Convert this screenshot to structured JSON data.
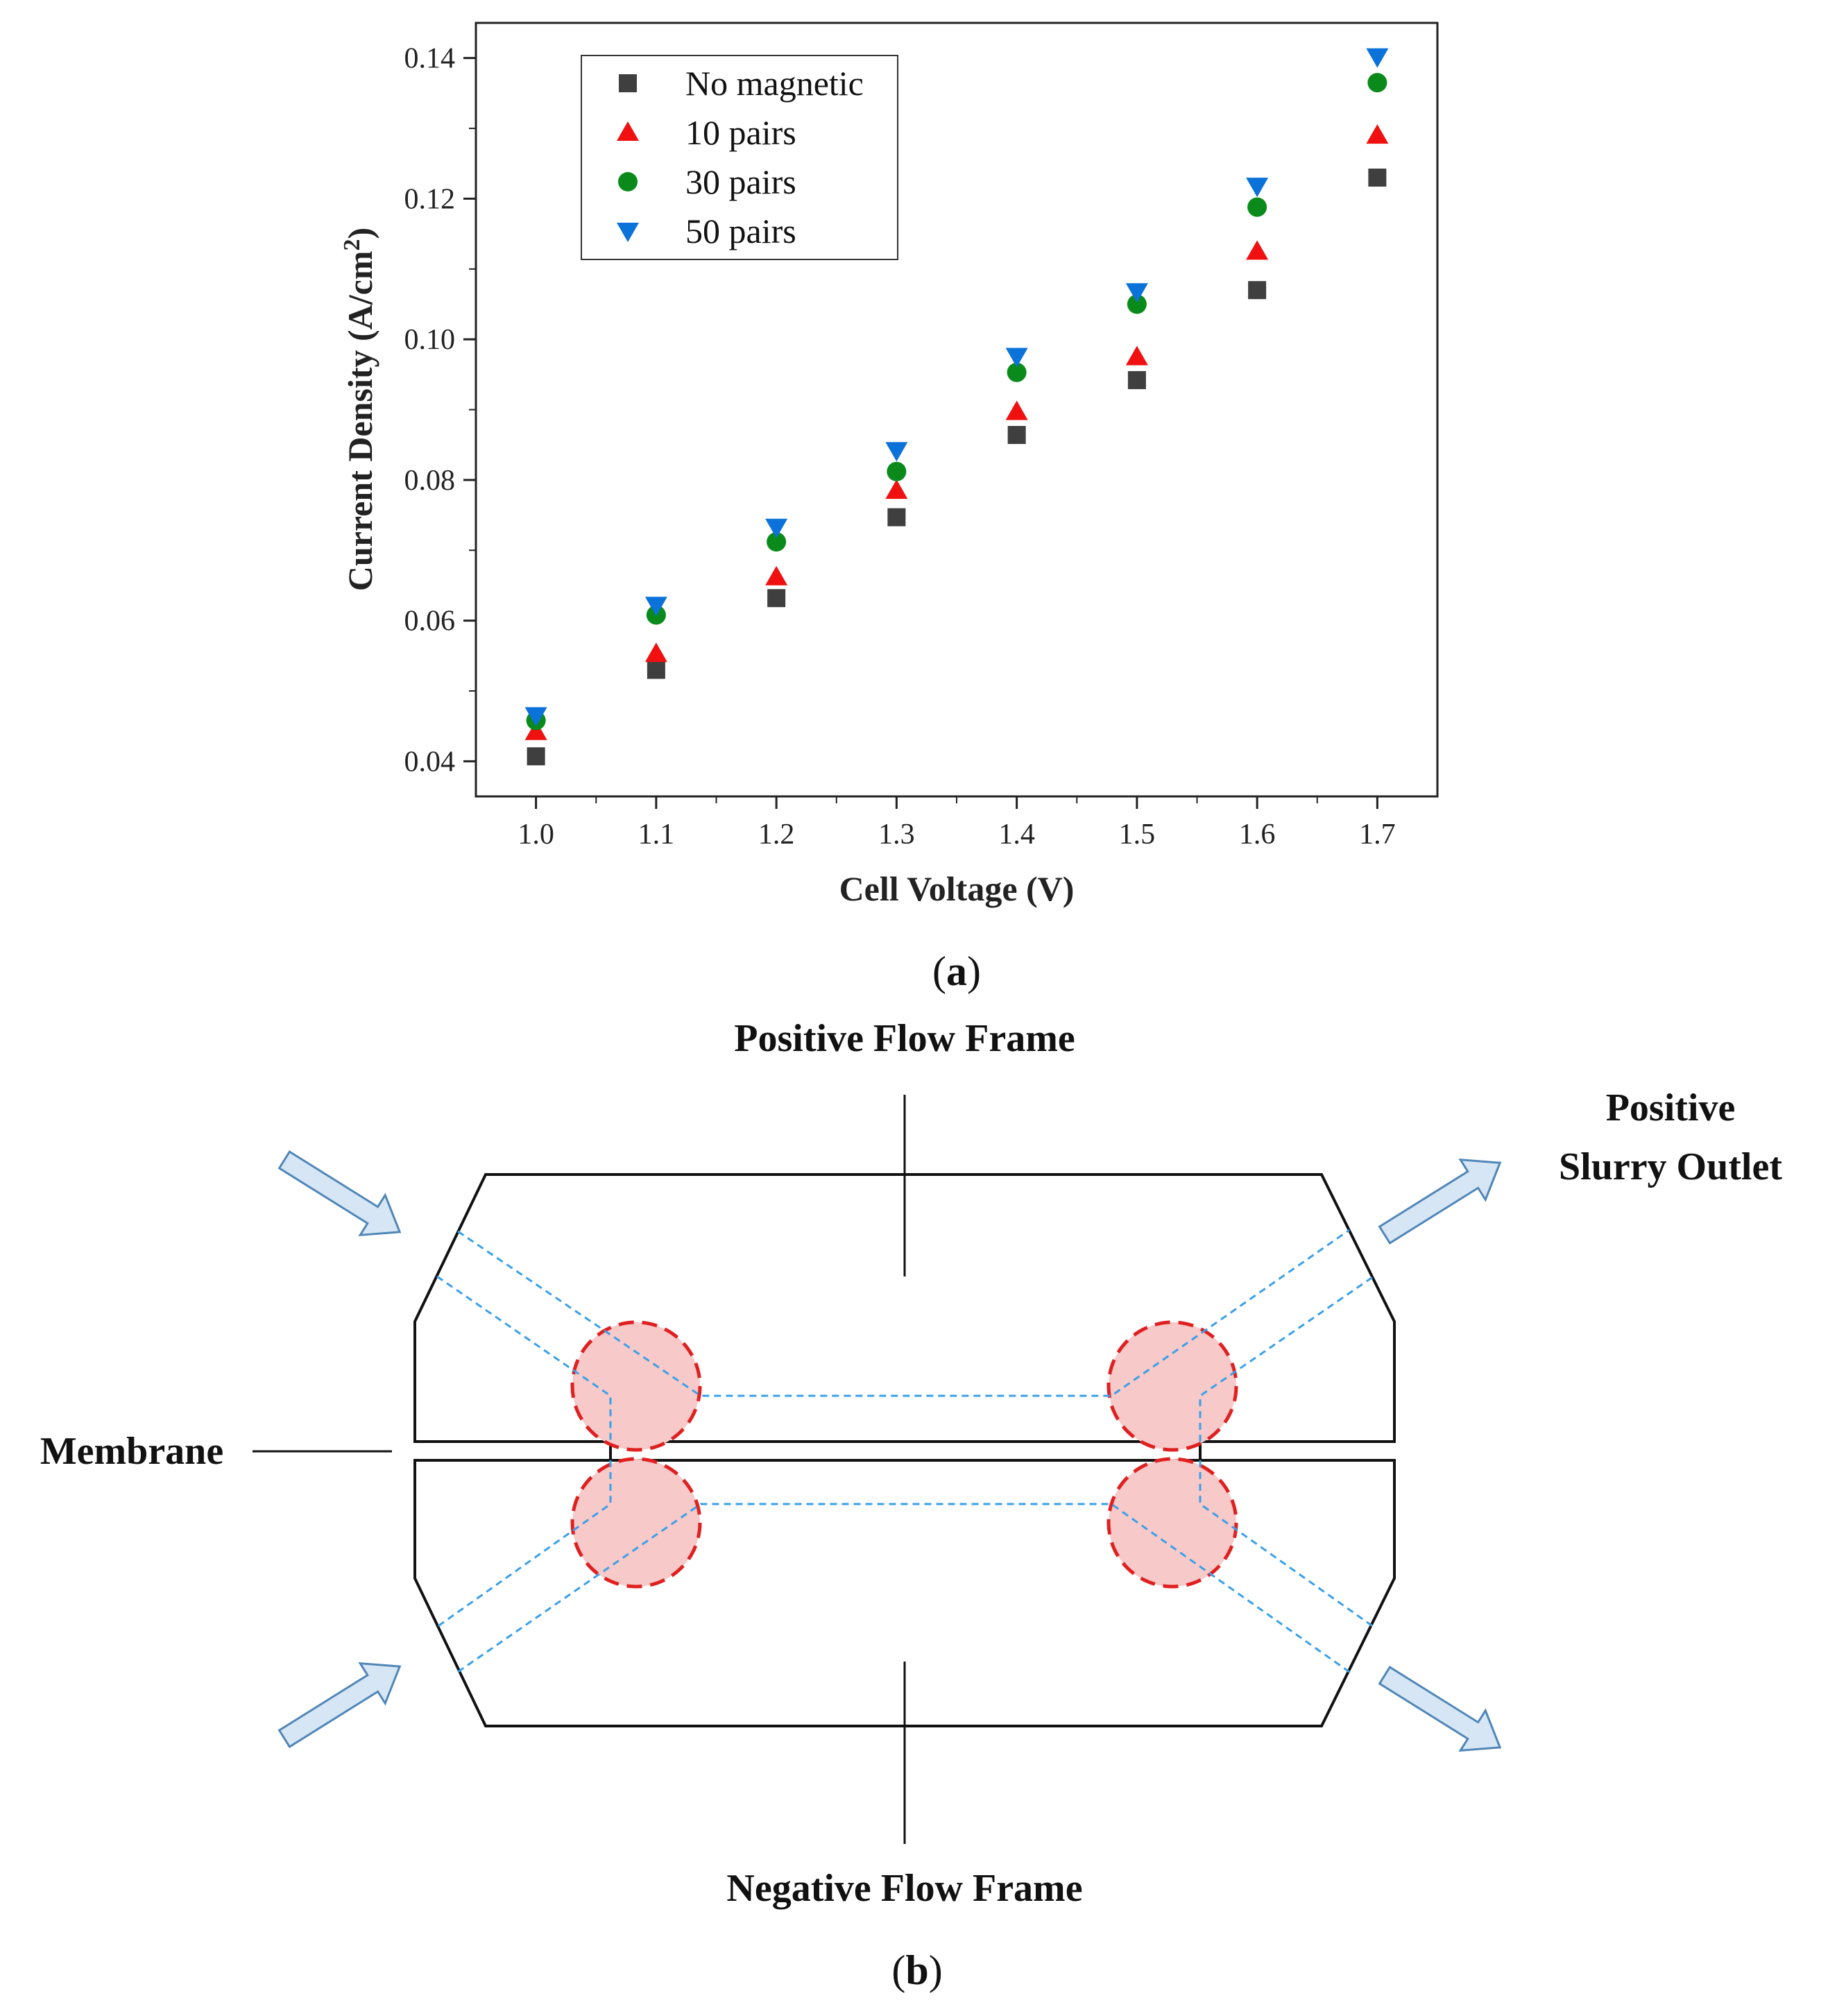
{
  "panel_a": {
    "label_open": "(",
    "label_letter": "a",
    "label_close": ")"
  },
  "panel_b": {
    "label_open": "(",
    "label_letter": "b",
    "label_close": ")",
    "positive_flow_frame": "Positive Flow Frame",
    "negative_flow_frame": "Negative Flow Frame",
    "membrane": "Membrane",
    "outlet_line1": "Positive",
    "outlet_line2": "Slurry  Outlet",
    "colors": {
      "arrow_fill": "#d6e6f4",
      "arrow_stroke": "#4f86b8",
      "channel": "#3aa0e8",
      "magnet_fill": "#f7c9c9",
      "magnet_stroke": "#e02020"
    }
  },
  "chart_data": {
    "type": "scatter",
    "xlabel": "Cell Voltage (V)",
    "ylabel_main": "Current Density (A/cm",
    "ylabel_sup": "2",
    "ylabel_close": ")",
    "x": [
      1.0,
      1.1,
      1.2,
      1.3,
      1.4,
      1.5,
      1.6,
      1.7
    ],
    "xlim": [
      0.95,
      1.75
    ],
    "ylim": [
      0.035,
      0.145
    ],
    "xticks": [
      "1.0",
      "1.1",
      "1.2",
      "1.3",
      "1.4",
      "1.5",
      "1.6",
      "1.7"
    ],
    "yticks": [
      "0.04",
      "0.06",
      "0.08",
      "0.10",
      "0.12",
      "0.14"
    ],
    "grid": false,
    "legend_position": "top-left",
    "series": [
      {
        "name": "No magnetic",
        "marker": "square",
        "color": "#3f3f3f",
        "values": [
          0.0407,
          0.053,
          0.0632,
          0.0747,
          0.0864,
          0.0942,
          0.107,
          0.123
        ]
      },
      {
        "name": "10 pairs",
        "marker": "triangle-up",
        "color": "#f01010",
        "values": [
          0.0442,
          0.0553,
          0.0662,
          0.0785,
          0.0897,
          0.0975,
          0.1125,
          0.129
        ]
      },
      {
        "name": "30 pairs",
        "marker": "circle",
        "color": "#0a8a1a",
        "values": [
          0.0458,
          0.0608,
          0.0712,
          0.0812,
          0.0953,
          0.105,
          0.1188,
          0.1365
        ]
      },
      {
        "name": "50 pairs",
        "marker": "triangle-down",
        "color": "#0a72d8",
        "values": [
          0.0465,
          0.0622,
          0.0733,
          0.0842,
          0.0976,
          0.1068,
          0.1218,
          0.1402
        ]
      }
    ]
  }
}
